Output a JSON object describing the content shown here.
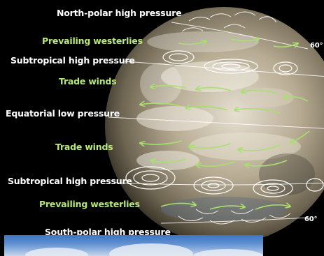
{
  "labels": {
    "north_polar_high": "North-polar high pressure",
    "prevailing_westerlies_north": "Prevailing westerlies",
    "subtropical_high_north": "Subtropical high pressure",
    "trade_winds_north": "Trade winds",
    "equatorial_low": "Equatorial low pressure",
    "trade_winds_south": "Trade winds",
    "subtropical_high_south": "Subtropical high pressure",
    "prevailing_westerlies_south": "Prevailing westerlies",
    "south_polar_high": "South-polar high pressure"
  },
  "latitude_marks": {
    "north_60": "60°",
    "south_60": "60°"
  },
  "colors": {
    "background": "#000000",
    "pressure_label": "#ffffff",
    "wind_label": "#b9e87a",
    "wind_arrow": "#a8e070",
    "isobar": "#ffffff"
  },
  "icons": {
    "wind_arrow": "arrow-icon",
    "pressure_cell": "isobar-oval"
  }
}
